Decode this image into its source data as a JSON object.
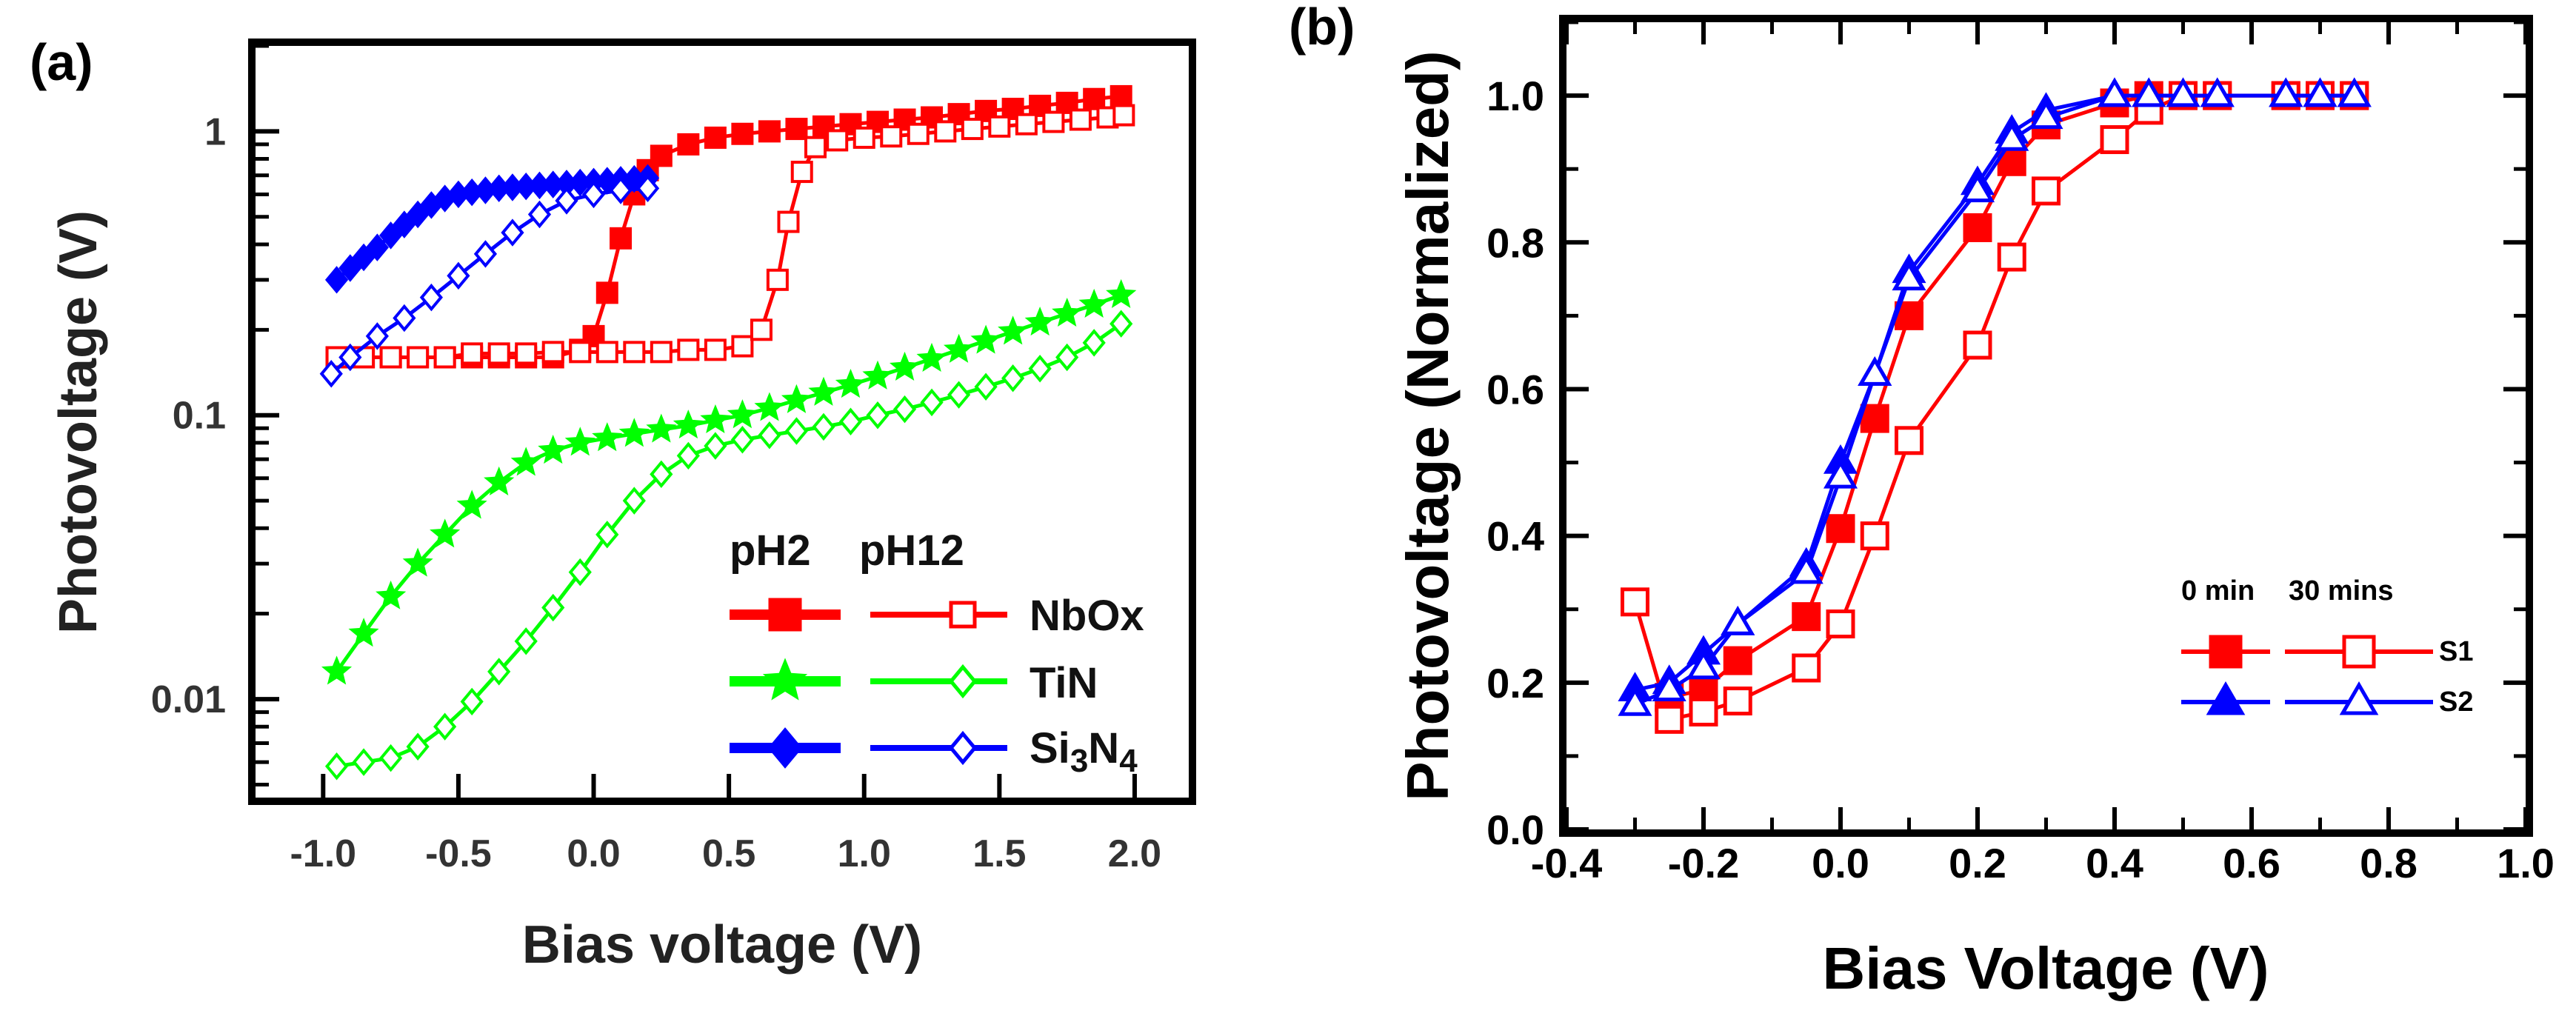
{
  "chart_data": [
    {
      "panel_label": "(a)",
      "type": "line",
      "xlabel": "Bias voltage (V)",
      "ylabel": "Photovoltage (V)",
      "xlim": [
        -1.25,
        2.2
      ],
      "ylim": [
        0.0045,
        2.0
      ],
      "y_scale": "log",
      "x_ticks": [
        -1.0,
        -0.5,
        0.0,
        0.5,
        1.0,
        1.5,
        2.0
      ],
      "x_tick_labels": [
        "-1.0",
        "-0.5",
        "0.0",
        "0.5",
        "1.0",
        "1.5",
        "2.0"
      ],
      "y_ticks": [
        0.01,
        0.1,
        1
      ],
      "y_tick_labels": [
        "0.01",
        "0.1",
        "1"
      ],
      "legend": {
        "position": "bottom-right",
        "headers": [
          "pH2",
          "pH12"
        ],
        "entries": [
          "NbOx",
          "TiN",
          "Si₃N₄"
        ],
        "entry_parts": [
          {
            "base": "NbOx",
            "sub": ""
          },
          {
            "base": "TiN",
            "sub": ""
          },
          {
            "base": "Si",
            "sub": "3",
            "base2": "N",
            "sub2": "4"
          }
        ]
      },
      "series": [
        {
          "name": "NbOx pH2",
          "color": "#ff0000",
          "marker": "square",
          "filled": true,
          "x": [
            -0.95,
            -0.85,
            -0.75,
            -0.65,
            -0.55,
            -0.45,
            -0.35,
            -0.25,
            -0.15,
            -0.05,
            0.0,
            0.05,
            0.1,
            0.15,
            0.2,
            0.25,
            0.35,
            0.45,
            0.55,
            0.65,
            0.75,
            0.85,
            0.95,
            1.05,
            1.15,
            1.25,
            1.35,
            1.45,
            1.55,
            1.65,
            1.75,
            1.85,
            1.95
          ],
          "y": [
            0.16,
            0.16,
            0.16,
            0.16,
            0.16,
            0.16,
            0.16,
            0.16,
            0.16,
            0.17,
            0.19,
            0.27,
            0.42,
            0.6,
            0.73,
            0.82,
            0.9,
            0.95,
            0.98,
            1.0,
            1.02,
            1.04,
            1.06,
            1.08,
            1.1,
            1.12,
            1.15,
            1.18,
            1.2,
            1.23,
            1.26,
            1.3,
            1.33
          ]
        },
        {
          "name": "NbOx pH12",
          "color": "#ff0000",
          "marker": "square",
          "filled": false,
          "x": [
            -0.95,
            -0.85,
            -0.75,
            -0.65,
            -0.55,
            -0.45,
            -0.35,
            -0.25,
            -0.15,
            -0.05,
            0.05,
            0.15,
            0.25,
            0.35,
            0.45,
            0.55,
            0.62,
            0.68,
            0.72,
            0.77,
            0.82,
            0.9,
            1.0,
            1.1,
            1.2,
            1.3,
            1.4,
            1.5,
            1.6,
            1.7,
            1.8,
            1.9,
            1.96
          ],
          "y": [
            0.16,
            0.16,
            0.16,
            0.16,
            0.16,
            0.165,
            0.165,
            0.165,
            0.167,
            0.167,
            0.167,
            0.167,
            0.167,
            0.17,
            0.17,
            0.175,
            0.2,
            0.3,
            0.48,
            0.72,
            0.88,
            0.93,
            0.95,
            0.96,
            0.98,
            1.0,
            1.02,
            1.04,
            1.06,
            1.08,
            1.1,
            1.12,
            1.14
          ]
        },
        {
          "name": "TiN pH2",
          "color": "#00ff00",
          "marker": "star",
          "filled": true,
          "x": [
            -0.95,
            -0.85,
            -0.75,
            -0.65,
            -0.55,
            -0.45,
            -0.35,
            -0.25,
            -0.15,
            -0.05,
            0.05,
            0.15,
            0.25,
            0.35,
            0.45,
            0.55,
            0.65,
            0.75,
            0.85,
            0.95,
            1.05,
            1.15,
            1.25,
            1.35,
            1.45,
            1.55,
            1.65,
            1.75,
            1.85,
            1.95
          ],
          "y": [
            0.0125,
            0.017,
            0.023,
            0.03,
            0.038,
            0.048,
            0.058,
            0.068,
            0.075,
            0.08,
            0.083,
            0.086,
            0.089,
            0.092,
            0.096,
            0.1,
            0.106,
            0.113,
            0.12,
            0.128,
            0.137,
            0.147,
            0.158,
            0.17,
            0.183,
            0.197,
            0.212,
            0.228,
            0.245,
            0.265
          ]
        },
        {
          "name": "TiN pH12",
          "color": "#00ff00",
          "marker": "diamond",
          "filled": false,
          "x": [
            -0.95,
            -0.85,
            -0.75,
            -0.65,
            -0.55,
            -0.45,
            -0.35,
            -0.25,
            -0.15,
            -0.05,
            0.05,
            0.15,
            0.25,
            0.35,
            0.45,
            0.55,
            0.65,
            0.75,
            0.85,
            0.95,
            1.05,
            1.15,
            1.25,
            1.35,
            1.45,
            1.55,
            1.65,
            1.75,
            1.85,
            1.95
          ],
          "y": [
            0.0058,
            0.006,
            0.0062,
            0.0068,
            0.008,
            0.0098,
            0.0125,
            0.016,
            0.021,
            0.028,
            0.038,
            0.05,
            0.062,
            0.072,
            0.078,
            0.082,
            0.085,
            0.088,
            0.091,
            0.095,
            0.1,
            0.105,
            0.111,
            0.118,
            0.126,
            0.135,
            0.146,
            0.16,
            0.18,
            0.21
          ]
        },
        {
          "name": "Si3N4 pH2",
          "color": "#0000ff",
          "marker": "diamond",
          "filled": true,
          "x": [
            -0.95,
            -0.9,
            -0.85,
            -0.8,
            -0.75,
            -0.7,
            -0.65,
            -0.6,
            -0.55,
            -0.5,
            -0.45,
            -0.4,
            -0.35,
            -0.3,
            -0.25,
            -0.2,
            -0.15,
            -0.1,
            -0.05,
            0.0,
            0.05,
            0.1,
            0.15,
            0.2
          ],
          "y": [
            0.3,
            0.33,
            0.36,
            0.39,
            0.43,
            0.47,
            0.51,
            0.55,
            0.58,
            0.6,
            0.61,
            0.62,
            0.63,
            0.635,
            0.64,
            0.645,
            0.65,
            0.655,
            0.66,
            0.665,
            0.67,
            0.675,
            0.68,
            0.685
          ]
        },
        {
          "name": "Si3N4 pH12",
          "color": "#0000ff",
          "marker": "diamond",
          "filled": false,
          "x": [
            -0.97,
            -0.9,
            -0.8,
            -0.7,
            -0.6,
            -0.5,
            -0.4,
            -0.3,
            -0.2,
            -0.1,
            0.0,
            0.1,
            0.2
          ],
          "y": [
            0.14,
            0.16,
            0.19,
            0.22,
            0.26,
            0.31,
            0.37,
            0.44,
            0.51,
            0.57,
            0.6,
            0.62,
            0.63
          ]
        }
      ]
    },
    {
      "panel_label": "(b)",
      "type": "line",
      "xlabel": "Bias Voltage (V)",
      "ylabel": "Photovoltage (Normalized)",
      "xlim": [
        -0.4,
        1.0
      ],
      "ylim": [
        0.0,
        1.1
      ],
      "x_ticks": [
        -0.4,
        -0.2,
        0.0,
        0.2,
        0.4,
        0.6,
        0.8,
        1.0
      ],
      "x_tick_labels": [
        "-0.4",
        "-0.2",
        "0.0",
        "0.2",
        "0.4",
        "0.6",
        "0.8",
        "1.0"
      ],
      "y_ticks": [
        0.0,
        0.2,
        0.4,
        0.6,
        0.8,
        1.0
      ],
      "y_tick_labels": [
        "0.0",
        "0.2",
        "0.4",
        "0.6",
        "0.8",
        "1.0"
      ],
      "legend": {
        "position": "lower-right",
        "headers": [
          "0 min",
          "30 mins"
        ],
        "entries": [
          "S1",
          "S2"
        ]
      },
      "series": [
        {
          "name": "S1 0 min",
          "color": "#ff0000",
          "marker": "square",
          "filled": true,
          "x": [
            -0.25,
            -0.2,
            -0.15,
            -0.05,
            0.0,
            0.05,
            0.1,
            0.2,
            0.25,
            0.3,
            0.4,
            0.45,
            0.5,
            0.55,
            0.65,
            0.7,
            0.75
          ],
          "y": [
            0.18,
            0.19,
            0.23,
            0.29,
            0.41,
            0.56,
            0.7,
            0.82,
            0.91,
            0.96,
            0.99,
            1.0,
            1.0,
            1.0,
            1.0,
            1.0,
            1.0
          ]
        },
        {
          "name": "S1 30 mins",
          "color": "#ff0000",
          "marker": "square",
          "filled": false,
          "x": [
            -0.3,
            -0.25,
            -0.2,
            -0.15,
            -0.05,
            0.0,
            0.05,
            0.1,
            0.2,
            0.25,
            0.3,
            0.4,
            0.45,
            0.5,
            0.55,
            0.65,
            0.7,
            0.75
          ],
          "y": [
            0.31,
            0.15,
            0.16,
            0.175,
            0.22,
            0.28,
            0.4,
            0.53,
            0.66,
            0.78,
            0.87,
            0.94,
            0.98,
            1.0,
            1.0,
            1.0,
            1.0,
            1.0
          ]
        },
        {
          "name": "S2 0 min",
          "color": "#0000ff",
          "marker": "triangle",
          "filled": true,
          "x": [
            -0.3,
            -0.25,
            -0.2,
            -0.15,
            -0.05,
            0.0,
            0.05,
            0.1,
            0.2,
            0.25,
            0.3,
            0.4,
            0.45,
            0.5,
            0.55,
            0.65,
            0.7,
            0.75
          ],
          "y": [
            0.19,
            0.2,
            0.24,
            0.28,
            0.36,
            0.5,
            0.62,
            0.76,
            0.88,
            0.95,
            0.98,
            1.0,
            1.0,
            1.0,
            1.0,
            1.0,
            1.0,
            1.0
          ]
        },
        {
          "name": "S2 30 mins",
          "color": "#0000ff",
          "marker": "triangle",
          "filled": false,
          "x": [
            -0.3,
            -0.25,
            -0.2,
            -0.15,
            -0.05,
            0.0,
            0.05,
            0.1,
            0.2,
            0.25,
            0.3,
            0.4,
            0.45,
            0.5,
            0.55,
            0.65,
            0.7,
            0.75
          ],
          "y": [
            0.17,
            0.19,
            0.22,
            0.28,
            0.35,
            0.48,
            0.62,
            0.75,
            0.87,
            0.94,
            0.97,
            1.0,
            1.0,
            1.0,
            1.0,
            1.0,
            1.0,
            1.0
          ]
        }
      ]
    }
  ]
}
